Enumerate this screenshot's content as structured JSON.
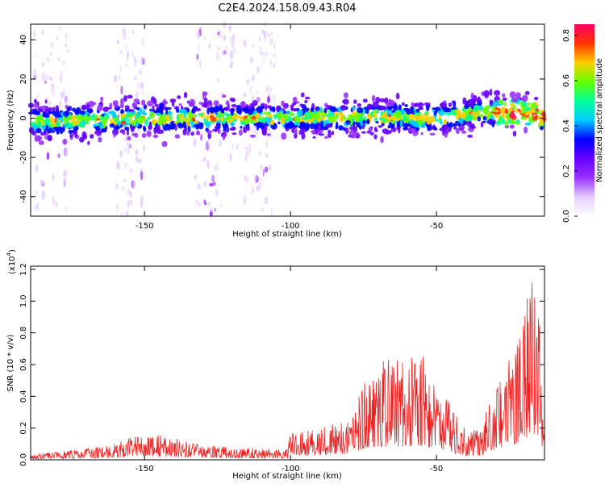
{
  "figure_title": "C2E4.2024.158.09.43.R04",
  "chart_data": [
    {
      "type": "heatmap",
      "title": "",
      "xlabel": "Height of straight line (km)",
      "ylabel": "Frequency (Hz)",
      "xlim": [
        -189,
        -13
      ],
      "ylim": [
        -50,
        48
      ],
      "xticks": [
        -150,
        -100,
        -50
      ],
      "yticks": [
        -40,
        -20,
        0,
        20,
        40
      ],
      "colorbar": {
        "label": "Normalized spectral amplitude",
        "range": [
          0.0,
          0.85
        ],
        "ticks": [
          0.0,
          0.2,
          0.4,
          0.6,
          0.8
        ],
        "colors": [
          "#ffffff",
          "#e6ccff",
          "#9933ff",
          "#6600ff",
          "#0000ff",
          "#00ccff",
          "#00ff99",
          "#66ff00",
          "#ffcc00",
          "#ff3300",
          "#ff0066"
        ]
      },
      "ridge": {
        "center_frequency_hz": [
          {
            "x": -189,
            "y": -2
          },
          {
            "x": -150,
            "y": 0
          },
          {
            "x": -100,
            "y": 0
          },
          {
            "x": -75,
            "y": 1
          },
          {
            "x": -50,
            "y": 0
          },
          {
            "x": -35,
            "y": 3
          },
          {
            "x": -25,
            "y": 3
          },
          {
            "x": -13,
            "y": 1
          }
        ],
        "half_width_hz": 8
      }
    },
    {
      "type": "line",
      "title": "",
      "xlabel": "Height of straight line (km)",
      "ylabel": "SNR (10 * v/v)",
      "scale_label": "(x10",
      "scale_exponent": "4",
      "scale_suffix": ")",
      "xlim": [
        -189,
        -13
      ],
      "ylim": [
        0.0,
        1.22
      ],
      "xticks": [
        -150,
        -100,
        -50
      ],
      "yticks": [
        0.0,
        0.2,
        0.4,
        0.6,
        0.8,
        1.0,
        1.2
      ],
      "color": "#ee2222",
      "envelope": [
        {
          "x": -189,
          "y": 0.03
        },
        {
          "x": -170,
          "y": 0.06
        },
        {
          "x": -160,
          "y": 0.09
        },
        {
          "x": -150,
          "y": 0.15
        },
        {
          "x": -140,
          "y": 0.12
        },
        {
          "x": -130,
          "y": 0.08
        },
        {
          "x": -120,
          "y": 0.07
        },
        {
          "x": -110,
          "y": 0.07
        },
        {
          "x": -101,
          "y": 0.06
        },
        {
          "x": -100,
          "y": 0.16
        },
        {
          "x": -90,
          "y": 0.17
        },
        {
          "x": -80,
          "y": 0.24
        },
        {
          "x": -74,
          "y": 0.48
        },
        {
          "x": -68,
          "y": 0.55
        },
        {
          "x": -60,
          "y": 0.55
        },
        {
          "x": -55,
          "y": 0.58
        },
        {
          "x": -48,
          "y": 0.38
        },
        {
          "x": -40,
          "y": 0.17
        },
        {
          "x": -35,
          "y": 0.18
        },
        {
          "x": -28,
          "y": 0.48
        },
        {
          "x": -22,
          "y": 0.65
        },
        {
          "x": -20,
          "y": 0.85
        },
        {
          "x": -16,
          "y": 1.15
        },
        {
          "x": -13,
          "y": 0.35
        }
      ]
    }
  ]
}
